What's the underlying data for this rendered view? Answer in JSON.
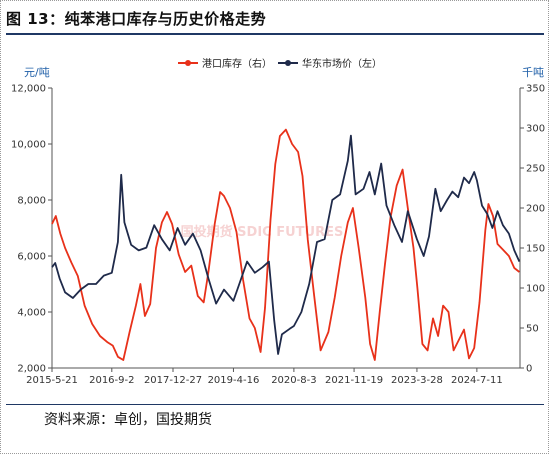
{
  "figure_title": "图 13：纯苯港口库存与历史价格走势",
  "source_note": "资料来源：卓创，国投期货",
  "watermark": "国投期货 SDIC FUTURES",
  "colors": {
    "port_inventory": "#e8311a",
    "east_china_price": "#1f2a4a",
    "axis_label": "#1f5fa8",
    "title_rule": "#1f3864"
  },
  "chart_data": {
    "type": "line",
    "title": "",
    "left_axis_unit": "元/吨",
    "right_axis_unit": "千吨",
    "left_ylim": [
      2000,
      12000
    ],
    "right_ylim": [
      0,
      350
    ],
    "left_ticks": [
      "2,000",
      "4,000",
      "6,000",
      "8,000",
      "10,000",
      "12,000"
    ],
    "right_ticks": [
      "0",
      "50",
      "100",
      "150",
      "200",
      "250",
      "300",
      "350"
    ],
    "x_tick_labels": [
      "2015-5-21",
      "2016-9-2",
      "2017-12-27",
      "2019-4-16",
      "2020-8-3",
      "2021-11-19",
      "2023-3-28",
      "2024-7-11"
    ],
    "x_tick_dates": [
      "2015-05-21",
      "2016-09-02",
      "2017-12-27",
      "2019-04-16",
      "2020-08-03",
      "2021-11-19",
      "2023-03-28",
      "2024-07-11"
    ],
    "x_range": [
      "2015-05-21",
      "2025-06-15"
    ],
    "legend_position": "top-center",
    "grid": false,
    "series": [
      {
        "name": "港口库存（右）",
        "axis": "right",
        "color": "#e8311a",
        "points": [
          [
            "2015-05-21",
            180
          ],
          [
            "2015-06-20",
            190
          ],
          [
            "2015-07-25",
            168
          ],
          [
            "2015-09-01",
            150
          ],
          [
            "2015-10-20",
            132
          ],
          [
            "2015-12-10",
            115
          ],
          [
            "2016-02-01",
            78
          ],
          [
            "2016-04-01",
            55
          ],
          [
            "2016-06-01",
            40
          ],
          [
            "2016-08-01",
            32
          ],
          [
            "2016-09-10",
            28
          ],
          [
            "2016-10-20",
            14
          ],
          [
            "2016-12-01",
            10
          ],
          [
            "2017-01-20",
            45
          ],
          [
            "2017-03-10",
            78
          ],
          [
            "2017-04-15",
            105
          ],
          [
            "2017-05-20",
            65
          ],
          [
            "2017-07-01",
            80
          ],
          [
            "2017-08-15",
            150
          ],
          [
            "2017-10-01",
            182
          ],
          [
            "2017-11-10",
            195
          ],
          [
            "2017-12-20",
            180
          ],
          [
            "2018-02-10",
            142
          ],
          [
            "2018-04-01",
            120
          ],
          [
            "2018-05-20",
            128
          ],
          [
            "2018-07-10",
            90
          ],
          [
            "2018-08-25",
            82
          ],
          [
            "2018-10-01",
            120
          ],
          [
            "2018-11-20",
            180
          ],
          [
            "2019-01-01",
            220
          ],
          [
            "2019-02-01",
            215
          ],
          [
            "2019-03-20",
            200
          ],
          [
            "2019-05-10",
            170
          ],
          [
            "2019-07-01",
            110
          ],
          [
            "2019-08-20",
            62
          ],
          [
            "2019-10-01",
            50
          ],
          [
            "2019-11-15",
            20
          ],
          [
            "2019-12-20",
            75
          ],
          [
            "2020-02-01",
            185
          ],
          [
            "2020-03-10",
            255
          ],
          [
            "2020-04-15",
            290
          ],
          [
            "2020-06-01",
            298
          ],
          [
            "2020-07-20",
            280
          ],
          [
            "2020-09-05",
            270
          ],
          [
            "2020-10-10",
            240
          ],
          [
            "2020-11-20",
            160
          ],
          [
            "2021-01-10",
            90
          ],
          [
            "2021-03-01",
            22
          ],
          [
            "2021-05-01",
            45
          ],
          [
            "2021-06-20",
            88
          ],
          [
            "2021-08-10",
            140
          ],
          [
            "2021-10-01",
            182
          ],
          [
            "2021-11-10",
            200
          ],
          [
            "2021-12-25",
            150
          ],
          [
            "2022-02-15",
            88
          ],
          [
            "2022-03-25",
            30
          ],
          [
            "2022-05-01",
            10
          ],
          [
            "2022-06-10",
            72
          ],
          [
            "2022-07-20",
            130
          ],
          [
            "2022-09-01",
            188
          ],
          [
            "2022-10-20",
            228
          ],
          [
            "2022-12-05",
            248
          ],
          [
            "2023-01-15",
            200
          ],
          [
            "2023-03-01",
            150
          ],
          [
            "2023-04-01",
            100
          ],
          [
            "2023-05-10",
            30
          ],
          [
            "2023-06-20",
            22
          ],
          [
            "2023-08-01",
            62
          ],
          [
            "2023-09-10",
            40
          ],
          [
            "2023-10-20",
            78
          ],
          [
            "2023-12-01",
            70
          ],
          [
            "2024-01-10",
            22
          ],
          [
            "2024-02-20",
            35
          ],
          [
            "2024-04-01",
            48
          ],
          [
            "2024-05-10",
            12
          ],
          [
            "2024-06-20",
            25
          ],
          [
            "2024-08-01",
            82
          ],
          [
            "2024-09-15",
            172
          ],
          [
            "2024-10-10",
            205
          ],
          [
            "2024-11-15",
            190
          ],
          [
            "2024-12-20",
            155
          ],
          [
            "2025-02-01",
            148
          ],
          [
            "2025-03-20",
            140
          ],
          [
            "2025-05-01",
            125
          ],
          [
            "2025-06-10",
            120
          ]
        ]
      },
      {
        "name": "华东市场价（左）",
        "axis": "left",
        "color": "#1f2a4a",
        "points": [
          [
            "2015-05-21",
            5600
          ],
          [
            "2015-06-15",
            5750
          ],
          [
            "2015-07-20",
            5200
          ],
          [
            "2015-09-01",
            4700
          ],
          [
            "2015-11-01",
            4500
          ],
          [
            "2016-01-01",
            4800
          ],
          [
            "2016-03-01",
            5000
          ],
          [
            "2016-05-01",
            5000
          ],
          [
            "2016-07-01",
            5300
          ],
          [
            "2016-09-02",
            5400
          ],
          [
            "2016-10-20",
            6500
          ],
          [
            "2016-11-15",
            8900
          ],
          [
            "2016-12-10",
            7200
          ],
          [
            "2017-02-01",
            6400
          ],
          [
            "2017-04-01",
            6200
          ],
          [
            "2017-06-01",
            6300
          ],
          [
            "2017-08-01",
            7100
          ],
          [
            "2017-10-01",
            6600
          ],
          [
            "2017-12-01",
            6200
          ],
          [
            "2018-02-01",
            7000
          ],
          [
            "2018-04-01",
            6400
          ],
          [
            "2018-06-01",
            6800
          ],
          [
            "2018-08-01",
            6200
          ],
          [
            "2018-10-01",
            5200
          ],
          [
            "2018-12-01",
            4300
          ],
          [
            "2019-02-01",
            4800
          ],
          [
            "2019-04-16",
            4400
          ],
          [
            "2019-06-01",
            5000
          ],
          [
            "2019-08-01",
            5800
          ],
          [
            "2019-10-01",
            5400
          ],
          [
            "2019-12-01",
            5600
          ],
          [
            "2020-01-20",
            5800
          ],
          [
            "2020-03-01",
            3700
          ],
          [
            "2020-04-01",
            2500
          ],
          [
            "2020-05-01",
            3200
          ],
          [
            "2020-07-01",
            3400
          ],
          [
            "2020-08-03",
            3500
          ],
          [
            "2020-10-01",
            4000
          ],
          [
            "2020-12-01",
            5000
          ],
          [
            "2021-02-01",
            6500
          ],
          [
            "2021-04-01",
            6600
          ],
          [
            "2021-06-01",
            8000
          ],
          [
            "2021-08-01",
            8200
          ],
          [
            "2021-10-01",
            9400
          ],
          [
            "2021-10-25",
            10300
          ],
          [
            "2021-12-01",
            8200
          ],
          [
            "2022-02-01",
            8400
          ],
          [
            "2022-03-20",
            9000
          ],
          [
            "2022-05-01",
            8200
          ],
          [
            "2022-06-20",
            9300
          ],
          [
            "2022-08-01",
            7800
          ],
          [
            "2022-10-01",
            7100
          ],
          [
            "2022-12-01",
            6500
          ],
          [
            "2023-01-15",
            7600
          ],
          [
            "2023-03-28",
            6600
          ],
          [
            "2023-05-20",
            6000
          ],
          [
            "2023-07-01",
            6700
          ],
          [
            "2023-08-20",
            8400
          ],
          [
            "2023-10-01",
            7600
          ],
          [
            "2023-11-20",
            8000
          ],
          [
            "2024-01-01",
            8300
          ],
          [
            "2024-02-15",
            8100
          ],
          [
            "2024-04-01",
            8800
          ],
          [
            "2024-05-10",
            8600
          ],
          [
            "2024-06-20",
            9000
          ],
          [
            "2024-07-11",
            8700
          ],
          [
            "2024-08-20",
            7800
          ],
          [
            "2024-10-01",
            7500
          ],
          [
            "2024-11-10",
            7000
          ],
          [
            "2024-12-20",
            7600
          ],
          [
            "2025-02-01",
            7100
          ],
          [
            "2025-03-20",
            6800
          ],
          [
            "2025-05-01",
            6200
          ],
          [
            "2025-06-10",
            5800
          ]
        ]
      }
    ]
  }
}
